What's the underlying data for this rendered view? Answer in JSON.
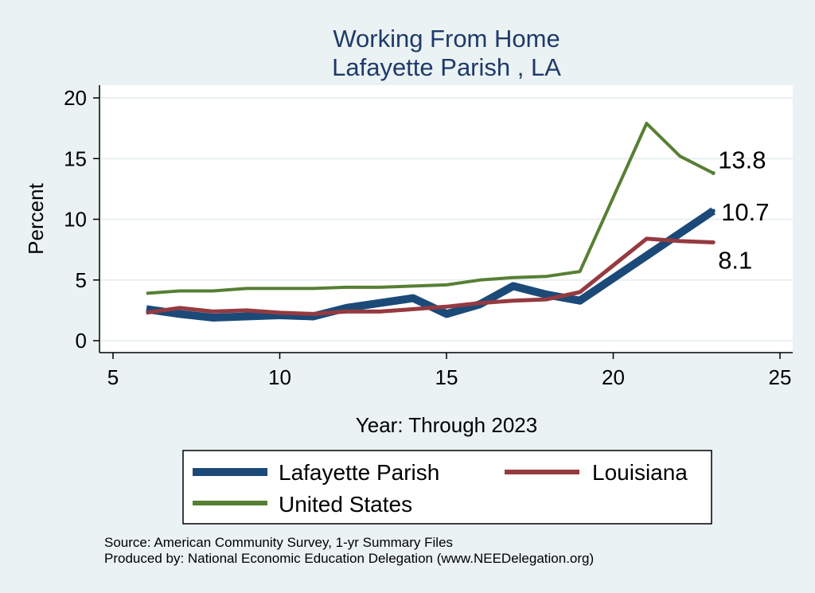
{
  "chart_data": {
    "type": "line",
    "title": [
      "Working From Home",
      "Lafayette Parish , LA"
    ],
    "xlabel": "Year: Through 2023",
    "ylabel": "Percent",
    "xlim": [
      5,
      25
    ],
    "ylim": [
      0,
      20
    ],
    "xticks": [
      5,
      10,
      15,
      20,
      25
    ],
    "yticks": [
      0,
      5,
      10,
      15,
      20
    ],
    "grid": true,
    "legend_position": "bottom",
    "series": [
      {
        "name": "Lafayette Parish",
        "color": "#1c4a78",
        "width": 10,
        "points": [
          [
            6,
            2.6
          ],
          [
            7,
            2.2
          ],
          [
            8,
            1.9
          ],
          [
            9,
            2.0
          ],
          [
            10,
            2.1
          ],
          [
            11,
            2.0
          ],
          [
            12,
            2.7
          ],
          [
            13,
            3.1
          ],
          [
            14,
            3.5
          ],
          [
            15,
            2.2
          ],
          [
            16,
            3.0
          ],
          [
            17,
            4.5
          ],
          [
            18,
            3.8
          ],
          [
            19,
            3.3
          ],
          [
            21,
            7.0
          ],
          [
            23,
            10.7
          ]
        ],
        "end_label": "10.7"
      },
      {
        "name": "Louisiana",
        "color": "#963a40",
        "width": 5,
        "points": [
          [
            6,
            2.3
          ],
          [
            7,
            2.7
          ],
          [
            8,
            2.4
          ],
          [
            9,
            2.5
          ],
          [
            10,
            2.3
          ],
          [
            11,
            2.2
          ],
          [
            12,
            2.4
          ],
          [
            13,
            2.4
          ],
          [
            14,
            2.6
          ],
          [
            15,
            2.8
          ],
          [
            16,
            3.1
          ],
          [
            17,
            3.3
          ],
          [
            18,
            3.4
          ],
          [
            19,
            4.0
          ],
          [
            21,
            8.4
          ],
          [
            22,
            8.2
          ],
          [
            23,
            8.1
          ]
        ],
        "end_label": "8.1"
      },
      {
        "name": "United States",
        "color": "#577f34",
        "width": 4,
        "points": [
          [
            6,
            3.9
          ],
          [
            7,
            4.1
          ],
          [
            8,
            4.1
          ],
          [
            9,
            4.3
          ],
          [
            10,
            4.3
          ],
          [
            11,
            4.3
          ],
          [
            12,
            4.4
          ],
          [
            13,
            4.4
          ],
          [
            14,
            4.5
          ],
          [
            15,
            4.6
          ],
          [
            16,
            5.0
          ],
          [
            17,
            5.2
          ],
          [
            18,
            5.3
          ],
          [
            19,
            5.7
          ],
          [
            21,
            17.9
          ],
          [
            22,
            15.2
          ],
          [
            23,
            13.8
          ]
        ],
        "end_label": "13.8"
      }
    ]
  },
  "footer": {
    "source": "Source: American Community Survey, 1-yr Summary Files",
    "producer": "Produced by: National Economic Education Delegation (www.NEEDelegation.org)"
  }
}
